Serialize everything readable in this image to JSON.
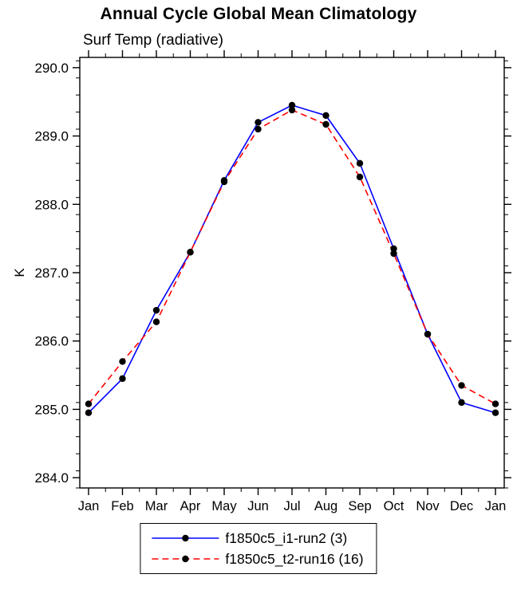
{
  "title": "Annual Cycle Global Mean Climatology",
  "subtitle": "Surf Temp (radiative)",
  "chart_data": {
    "type": "line",
    "title": "Annual Cycle Global Mean Climatology",
    "subtitle": "Surf Temp (radiative)",
    "xlabel": "",
    "ylabel": "K",
    "ylim": [
      284.0,
      290.0
    ],
    "y_major_step": 1.0,
    "y_minor_step": 0.25,
    "y_tick_labels": [
      "284.0",
      "285.0",
      "286.0",
      "287.0",
      "288.0",
      "289.0",
      "290.0"
    ],
    "categories": [
      "Jan",
      "Feb",
      "Mar",
      "Apr",
      "May",
      "Jun",
      "Jul",
      "Aug",
      "Sep",
      "Oct",
      "Nov",
      "Dec",
      "Jan"
    ],
    "grid": false,
    "legend_position": "bottom-center",
    "marker_color": "#000000",
    "series": [
      {
        "name": "f1850c5_i1-run2 (3)",
        "color": "#0000ff",
        "line_style": "solid",
        "marker": "filled-circle",
        "values": [
          284.95,
          285.45,
          286.45,
          287.3,
          288.35,
          289.2,
          289.45,
          289.3,
          288.6,
          287.35,
          286.1,
          285.1,
          284.95
        ]
      },
      {
        "name": "f1850c5_t2-run16 (16)",
        "color": "#ff0000",
        "line_style": "dashed",
        "marker": "filled-circle",
        "values": [
          285.08,
          285.7,
          286.28,
          287.3,
          288.33,
          289.1,
          289.38,
          289.17,
          288.4,
          287.28,
          286.1,
          285.35,
          285.08
        ]
      }
    ]
  }
}
